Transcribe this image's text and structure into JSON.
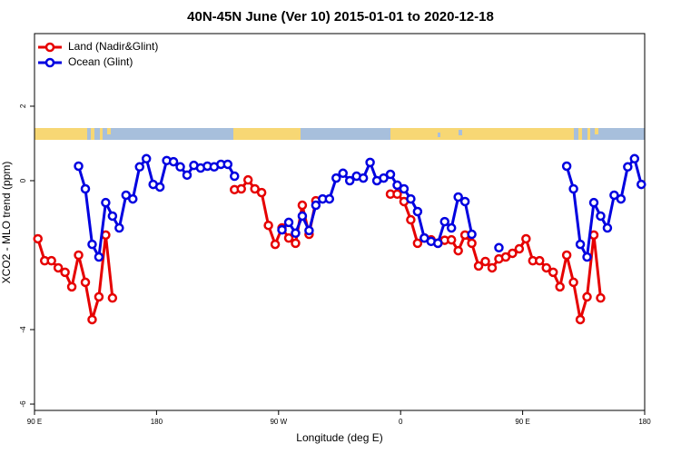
{
  "chart_data": {
    "type": "line",
    "title": "40N-45N June (Ver 10)   2015-01-01 to 2020-12-18",
    "x_label": "Longitude (deg E)",
    "y_label": "XCO2 - MLO trend (ppm)",
    "xlim": [
      90,
      540
    ],
    "ylim": [
      -6.17,
      3.95
    ],
    "xticks": [
      {
        "value": 90,
        "label": "90 E"
      },
      180,
      {
        "value": 270,
        "label": "90 W"
      },
      {
        "value": 360,
        "label": "0"
      },
      {
        "value": 450,
        "label": "90 E"
      },
      {
        "value": 540,
        "label": "180"
      }
    ],
    "yticks": [
      -6,
      -4,
      0,
      2
    ],
    "legend": "topleft",
    "x": [
      92.5,
      97.5,
      102.5,
      107.5,
      112.5,
      117.5,
      122.5,
      127.5,
      132.5,
      137.5,
      142.5,
      147.5,
      152.5,
      157.5,
      162.5,
      167.5,
      172.5,
      177.5,
      182.5,
      187.5,
      192.5,
      197.5,
      202.5,
      207.5,
      212.5,
      217.5,
      222.5,
      227.5,
      232.5,
      237.5,
      242.5,
      247.5,
      252.5,
      257.5,
      262.5,
      267.5,
      272.5,
      277.5,
      282.5,
      287.5,
      292.5,
      297.5,
      302.5,
      307.5,
      312.5,
      317.5,
      322.5,
      327.5,
      332.5,
      337.5,
      342.5,
      347.5,
      352.5,
      357.5,
      362.5,
      367.5,
      372.5,
      377.5,
      382.5,
      387.5,
      392.5,
      397.5,
      402.5,
      407.5,
      412.5,
      417.5,
      422.5,
      427.5,
      432.5,
      437.5,
      442.5,
      447.5,
      452.5,
      457.5,
      462.5,
      467.5,
      472.5,
      477.5,
      482.5,
      487.5,
      492.5,
      497.5,
      502.5,
      507.5,
      512.5,
      517.5,
      522.5,
      527.5,
      532.5,
      537.5
    ],
    "series": [
      {
        "name": "Land (Nadir&Glint)",
        "color": "#e60000",
        "values": [
          -1.56,
          -2.15,
          -2.15,
          -2.34,
          -2.46,
          -2.85,
          -2.0,
          -2.73,
          -3.73,
          -3.12,
          -1.46,
          -3.15,
          null,
          null,
          null,
          null,
          null,
          null,
          null,
          null,
          null,
          null,
          null,
          null,
          null,
          null,
          null,
          null,
          null,
          -0.24,
          -0.22,
          0.02,
          -0.22,
          -0.32,
          -1.2,
          -1.71,
          -1.27,
          -1.54,
          -1.68,
          -0.66,
          -1.44,
          -0.54,
          null,
          null,
          null,
          null,
          null,
          null,
          null,
          null,
          null,
          null,
          -0.36,
          -0.36,
          -0.56,
          -1.05,
          -1.68,
          -1.54,
          -1.59,
          -1.68,
          -1.6,
          -1.59,
          -1.88,
          -1.46,
          -1.68,
          -2.29,
          -2.17,
          -2.34,
          -2.1,
          -2.05,
          -1.95,
          -1.83,
          -1.56,
          -2.15,
          -2.15,
          -2.34,
          -2.46,
          -2.85,
          -2.0,
          -2.73,
          -3.73,
          -3.12,
          -1.46,
          -3.15,
          null,
          null,
          null,
          null,
          null,
          null
        ]
      },
      {
        "name": "Ocean (Glint)",
        "color": "#0000e0",
        "values": [
          null,
          null,
          null,
          null,
          null,
          null,
          0.39,
          -0.22,
          -1.71,
          -2.05,
          -0.59,
          -0.95,
          -1.27,
          -0.39,
          -0.49,
          0.37,
          0.59,
          -0.1,
          -0.17,
          0.54,
          0.51,
          0.37,
          0.15,
          0.41,
          0.34,
          0.39,
          0.37,
          0.44,
          0.44,
          0.12,
          null,
          null,
          null,
          null,
          null,
          null,
          -1.32,
          -1.12,
          -1.41,
          -0.95,
          -1.34,
          -0.66,
          -0.49,
          -0.49,
          0.07,
          0.2,
          0,
          0.12,
          0.07,
          0.49,
          0,
          0.07,
          0.17,
          -0.12,
          -0.22,
          -0.49,
          -0.83,
          -1.54,
          -1.63,
          -1.68,
          -1.1,
          -1.27,
          -0.44,
          -0.56,
          -1.44,
          null,
          null,
          null,
          -1.8,
          null,
          null,
          null,
          null,
          null,
          null,
          null,
          null,
          null,
          0.39,
          -0.22,
          -1.71,
          -2.05,
          -0.59,
          -0.95,
          -1.27,
          -0.39,
          -0.49,
          0.37,
          0.59,
          -0.1
        ]
      }
    ]
  }
}
